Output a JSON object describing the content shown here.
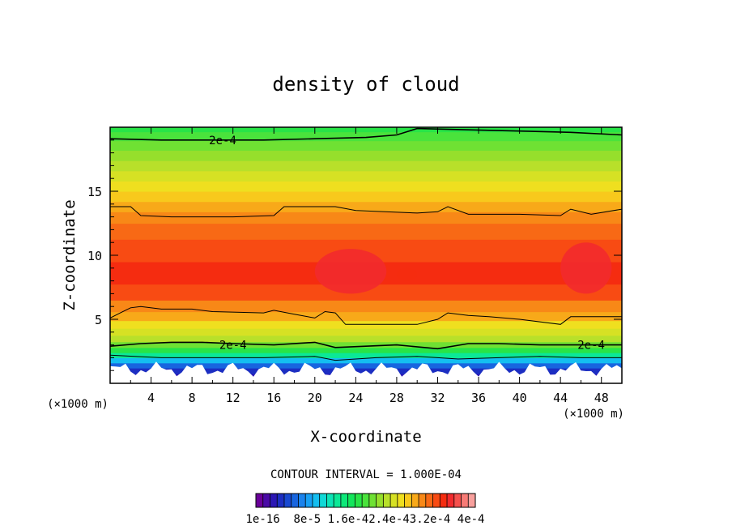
{
  "chart_data": {
    "type": "heatmap",
    "title": "density of cloud",
    "xlabel": "X-coordinate",
    "ylabel": "Z-coordinate",
    "x_unit": "(×1000 m)",
    "z_unit": "(×1000 m)",
    "xlim": [
      0,
      50
    ],
    "ylim": [
      0,
      20
    ],
    "x_ticks": [
      4,
      8,
      12,
      16,
      20,
      24,
      28,
      32,
      36,
      40,
      44,
      48
    ],
    "y_ticks": [
      5,
      10,
      15
    ],
    "contour_interval": "CONTOUR INTERVAL = 1.000E-04",
    "contours": [
      {
        "label": "2e-4",
        "label_positions": [
          [
            11,
            19.0
          ]
        ],
        "points": [
          [
            0,
            19.1
          ],
          [
            5,
            19.0
          ],
          [
            10,
            19.0
          ],
          [
            15,
            19.0
          ],
          [
            20,
            19.1
          ],
          [
            25,
            19.2
          ],
          [
            28,
            19.4
          ],
          [
            30,
            19.9
          ],
          [
            35,
            19.8
          ],
          [
            40,
            19.7
          ],
          [
            45,
            19.6
          ],
          [
            50,
            19.4
          ]
        ]
      },
      {
        "label": "",
        "label_positions": [],
        "points": [
          [
            0,
            13.8
          ],
          [
            2,
            13.8
          ],
          [
            3,
            13.1
          ],
          [
            6,
            13.0
          ],
          [
            12,
            13.0
          ],
          [
            16,
            13.1
          ],
          [
            17,
            13.8
          ],
          [
            20,
            13.8
          ],
          [
            22,
            13.8
          ],
          [
            24,
            13.5
          ],
          [
            30,
            13.3
          ],
          [
            32,
            13.4
          ],
          [
            33,
            13.8
          ],
          [
            35,
            13.2
          ],
          [
            40,
            13.2
          ],
          [
            44,
            13.1
          ],
          [
            45,
            13.6
          ],
          [
            47,
            13.2
          ],
          [
            50,
            13.6
          ]
        ]
      },
      {
        "label": "",
        "label_positions": [],
        "points": [
          [
            0,
            5.1
          ],
          [
            1,
            5.5
          ],
          [
            2,
            5.9
          ],
          [
            3,
            6.0
          ],
          [
            5,
            5.8
          ],
          [
            8,
            5.8
          ],
          [
            10,
            5.6
          ],
          [
            15,
            5.5
          ],
          [
            16,
            5.7
          ],
          [
            18,
            5.4
          ],
          [
            20,
            5.1
          ],
          [
            21,
            5.6
          ],
          [
            22,
            5.5
          ],
          [
            23,
            4.6
          ],
          [
            26,
            4.6
          ],
          [
            30,
            4.6
          ],
          [
            32,
            5.0
          ],
          [
            33,
            5.5
          ],
          [
            35,
            5.3
          ],
          [
            37,
            5.2
          ],
          [
            40,
            5.0
          ],
          [
            44,
            4.6
          ],
          [
            45,
            5.2
          ],
          [
            48,
            5.2
          ],
          [
            50,
            5.2
          ]
        ]
      },
      {
        "label": "2e-4",
        "label_positions": [
          [
            12,
            3.0
          ],
          [
            47,
            3.0
          ]
        ],
        "points": [
          [
            0,
            2.9
          ],
          [
            3,
            3.1
          ],
          [
            6,
            3.2
          ],
          [
            9,
            3.2
          ],
          [
            12,
            3.1
          ],
          [
            16,
            3.0
          ],
          [
            20,
            3.2
          ],
          [
            22,
            2.8
          ],
          [
            25,
            2.9
          ],
          [
            28,
            3.0
          ],
          [
            32,
            2.7
          ],
          [
            35,
            3.1
          ],
          [
            38,
            3.1
          ],
          [
            42,
            3.0
          ],
          [
            46,
            3.0
          ],
          [
            50,
            3.0
          ]
        ]
      },
      {
        "label": "",
        "label_positions": [],
        "points": [
          [
            0,
            2.2
          ],
          [
            5,
            2.0
          ],
          [
            10,
            2.0
          ],
          [
            15,
            2.0
          ],
          [
            20,
            2.1
          ],
          [
            22,
            1.8
          ],
          [
            26,
            2.0
          ],
          [
            30,
            2.1
          ],
          [
            34,
            1.9
          ],
          [
            38,
            2.0
          ],
          [
            42,
            2.1
          ],
          [
            46,
            2.0
          ],
          [
            50,
            2.0
          ]
        ]
      }
    ],
    "colorbar": {
      "colors": [
        "#6a0099",
        "#4a0aa6",
        "#2b17b4",
        "#1c2ec2",
        "#1849d1",
        "#1865df",
        "#1a82ec",
        "#17a0f4",
        "#14bef0",
        "#10d8d6",
        "#0ce4b6",
        "#0be897",
        "#0de879",
        "#13e65b",
        "#28e447",
        "#4ae33c",
        "#6fe133",
        "#96df2c",
        "#b8e02a",
        "#d6e124",
        "#efdf1f",
        "#f8c91c",
        "#f8a919",
        "#f88817",
        "#f86915",
        "#f84b13",
        "#f52c10",
        "#f22a2d",
        "#f5504d",
        "#f77b76",
        "#f8a09d"
      ],
      "labels": [
        "1e-16",
        "8e-5",
        "1.6e-4",
        "2.4e-4",
        "3.2e-4",
        "4e-4"
      ],
      "label_text": "1e-16  8e-5 1.6e-42.4e-43.2e-4 4e-4"
    },
    "vertical_profile": [
      {
        "z": 0.5,
        "level": 2
      },
      {
        "z": 1.0,
        "level": 3
      },
      {
        "z": 1.4,
        "level": 5
      },
      {
        "z": 1.8,
        "level": 8
      },
      {
        "z": 2.2,
        "level": 11
      },
      {
        "z": 2.6,
        "level": 14
      },
      {
        "z": 3.0,
        "level": 16
      },
      {
        "z": 3.5,
        "level": 18
      },
      {
        "z": 4.0,
        "level": 19
      },
      {
        "z": 4.6,
        "level": 20
      },
      {
        "z": 5.2,
        "level": 22
      },
      {
        "z": 6.0,
        "level": 23
      },
      {
        "z": 7.0,
        "level": 25
      },
      {
        "z": 8.5,
        "level": 26
      },
      {
        "z": 10.5,
        "level": 25
      },
      {
        "z": 12.0,
        "level": 24
      },
      {
        "z": 13.0,
        "level": 23
      },
      {
        "z": 13.8,
        "level": 22
      },
      {
        "z": 14.6,
        "level": 21
      },
      {
        "z": 15.4,
        "level": 20
      },
      {
        "z": 16.2,
        "level": 19
      },
      {
        "z": 17.0,
        "level": 18
      },
      {
        "z": 17.8,
        "level": 17
      },
      {
        "z": 18.6,
        "level": 16
      },
      {
        "z": 19.3,
        "level": 15
      },
      {
        "z": 20.0,
        "level": 14
      }
    ],
    "hotspots": [
      {
        "x": [
          20,
          27
        ],
        "z": [
          7.0,
          10.5
        ],
        "level": 27
      },
      {
        "x": [
          44,
          49
        ],
        "z": [
          7.0,
          11.0
        ],
        "level": 27
      },
      {
        "x": [
          28,
          30
        ],
        "z": [
          8.0,
          9.0
        ],
        "level": 26
      }
    ]
  }
}
